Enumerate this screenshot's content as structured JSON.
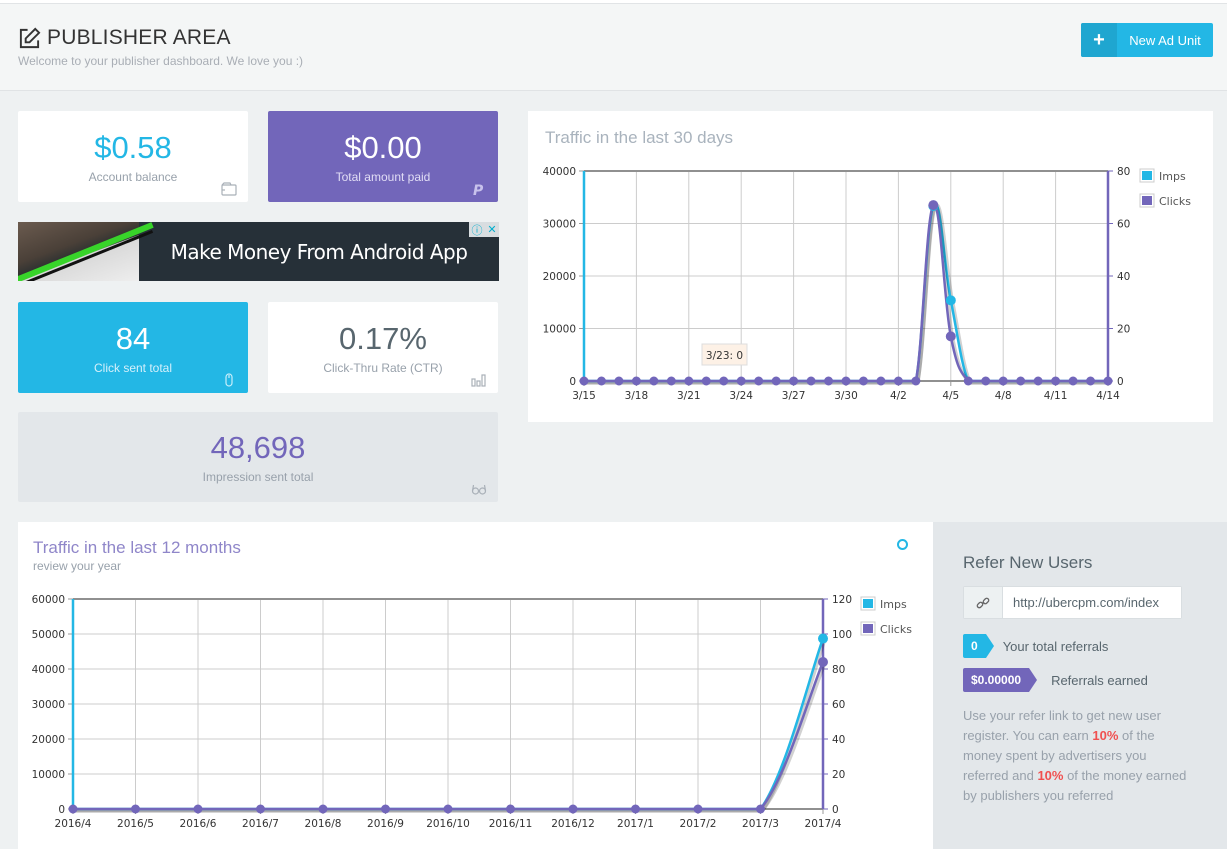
{
  "header": {
    "title": "PUBLISHER AREA",
    "subtitle": "Welcome to your publisher dashboard. We love you :)",
    "title_icon": "edit-icon",
    "new_ad_unit_label": "New Ad Unit",
    "new_ad_unit_icon": "plus-icon"
  },
  "stats": {
    "account_balance": {
      "value": "$0.58",
      "label": "Account balance",
      "icon": "wallet-icon"
    },
    "total_paid": {
      "value": "$0.00",
      "label": "Total amount paid",
      "icon": "paypal-icon"
    },
    "clicks": {
      "value": "84",
      "label": "Click sent total",
      "icon": "mouse-icon"
    },
    "ctr": {
      "value": "0.17%",
      "label": "Click-Thru Rate (CTR)",
      "icon": "bar-chart-icon"
    },
    "impressions": {
      "value": "48,698",
      "label": "Impression sent total",
      "icon": "glasses-icon"
    }
  },
  "ad": {
    "text": "Make Money From Android App",
    "info_glyph": "ⓘ",
    "close_glyph": "✕"
  },
  "colors": {
    "imps": "#23b7e5",
    "clicks": "#7266ba",
    "accent_red": "#f05050"
  },
  "chart30": {
    "title": "Traffic in the last 30 days",
    "tooltip": "3/23: 0"
  },
  "chart12": {
    "title": "Traffic in the last 12 months",
    "subtitle": "review your year"
  },
  "chart_data": [
    {
      "type": "line",
      "title": "Traffic in the last 30 days",
      "x": [
        "3/15",
        "3/16",
        "3/17",
        "3/18",
        "3/19",
        "3/20",
        "3/21",
        "3/22",
        "3/23",
        "3/24",
        "3/25",
        "3/26",
        "3/27",
        "3/28",
        "3/29",
        "3/30",
        "3/31",
        "4/1",
        "4/2",
        "4/3",
        "4/4",
        "4/5",
        "4/6",
        "4/7",
        "4/8",
        "4/9",
        "4/10",
        "4/11",
        "4/12",
        "4/13",
        "4/14"
      ],
      "x_tick_labels": [
        "3/15",
        "3/18",
        "3/21",
        "3/24",
        "3/27",
        "3/30",
        "4/2",
        "4/5",
        "4/8",
        "4/11",
        "4/14"
      ],
      "series": [
        {
          "name": "Imps",
          "axis": "left",
          "values": [
            0,
            0,
            0,
            0,
            0,
            0,
            0,
            0,
            0,
            0,
            0,
            0,
            0,
            0,
            0,
            0,
            0,
            0,
            0,
            0,
            33333,
            15365,
            0,
            0,
            0,
            0,
            0,
            0,
            0,
            0,
            0
          ]
        },
        {
          "name": "Clicks",
          "axis": "right",
          "values": [
            0,
            0,
            0,
            0,
            0,
            0,
            0,
            0,
            0,
            0,
            0,
            0,
            0,
            0,
            0,
            0,
            0,
            0,
            0,
            0,
            67,
            17,
            0,
            0,
            0,
            0,
            0,
            0,
            0,
            0,
            0
          ]
        }
      ],
      "yleft": {
        "min": 0,
        "max": 40000,
        "ticks": [
          0,
          10000,
          20000,
          30000,
          40000
        ]
      },
      "yright": {
        "min": 0,
        "max": 80,
        "ticks": [
          0,
          20,
          40,
          60,
          80
        ]
      },
      "legend": [
        "Imps",
        "Clicks"
      ],
      "legend_position": "right",
      "grid": true
    },
    {
      "type": "line",
      "title": "Traffic in the last 12 months",
      "x": [
        "2016/4",
        "2016/5",
        "2016/6",
        "2016/7",
        "2016/8",
        "2016/9",
        "2016/10",
        "2016/11",
        "2016/12",
        "2017/1",
        "2017/2",
        "2017/3",
        "2017/4"
      ],
      "x_tick_labels": [
        "2016/4",
        "2016/5",
        "2016/6",
        "2016/7",
        "2016/8",
        "2016/9",
        "2016/10",
        "2016/11",
        "2016/12",
        "2017/1",
        "2017/2",
        "2017/3",
        "2017/4"
      ],
      "series": [
        {
          "name": "Imps",
          "axis": "left",
          "values": [
            0,
            0,
            0,
            0,
            0,
            0,
            0,
            0,
            0,
            0,
            0,
            0,
            48698
          ]
        },
        {
          "name": "Clicks",
          "axis": "right",
          "values": [
            0,
            0,
            0,
            0,
            0,
            0,
            0,
            0,
            0,
            0,
            0,
            0,
            84
          ]
        }
      ],
      "yleft": {
        "min": 0,
        "max": 60000,
        "ticks": [
          0,
          10000,
          20000,
          30000,
          40000,
          50000,
          60000
        ]
      },
      "yright": {
        "min": 0,
        "max": 120,
        "ticks": [
          0,
          20,
          40,
          60,
          80,
          100,
          120
        ]
      },
      "legend": [
        "Imps",
        "Clicks"
      ],
      "legend_position": "right",
      "grid": true
    }
  ],
  "refer": {
    "title": "Refer New Users",
    "link_icon": "link-icon",
    "link_value": "http://ubercpm.com/index",
    "total_referrals": "0",
    "total_referrals_label": "Your total referrals",
    "earned": "$0.00000",
    "earned_label": "Referrals earned",
    "desc_parts": [
      "Use your refer link to get new user register. You can earn ",
      "10%",
      " of the money spent by advertisers you referred and ",
      "10%",
      " of the money earned by publishers you referred"
    ]
  }
}
